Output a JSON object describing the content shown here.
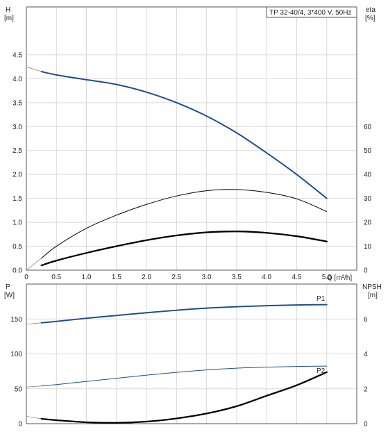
{
  "chart_data": [
    {
      "type": "line",
      "title": "TP 32-40/4, 3*400 V, 50Hz",
      "xlabel": "Q [m³/h]",
      "ylabel_left": [
        "H",
        "[m]"
      ],
      "ylabel_right": [
        "eta",
        "[%]"
      ],
      "xlim": [
        0,
        5.5
      ],
      "ylim_left": [
        0,
        5.5
      ],
      "ylim_right": [
        0,
        110
      ],
      "grid": true,
      "x_ticks": [
        "0",
        "0.5",
        "1.0",
        "1.5",
        "2.0",
        "2.5",
        "3.0",
        "3.5",
        "4.0",
        "4.5",
        "5.0"
      ],
      "y_ticks_left": [
        "0.0",
        "0.5",
        "1.0",
        "1.5",
        "2.0",
        "2.5",
        "3.0",
        "3.5",
        "4.0",
        "4.5"
      ],
      "y_ticks_right": [
        "0",
        "10",
        "20",
        "30",
        "40",
        "50",
        "60"
      ],
      "series": [
        {
          "role": "H-extension",
          "axis": "left",
          "color": "#7a7a7a",
          "width": 0.7,
          "x": [
            0,
            0.1,
            0.2,
            0.25
          ],
          "y": [
            4.25,
            4.21,
            4.17,
            4.15
          ]
        },
        {
          "role": "H",
          "axis": "left",
          "color": "#1f4e8c",
          "width": 2,
          "x": [
            0.25,
            0.5,
            1.0,
            1.5,
            2.0,
            2.5,
            3.0,
            3.5,
            4.0,
            4.5,
            5.0
          ],
          "y": [
            4.15,
            4.08,
            3.98,
            3.88,
            3.72,
            3.5,
            3.22,
            2.87,
            2.45,
            2.0,
            1.5
          ]
        },
        {
          "role": "eta-extension",
          "axis": "right",
          "color": "#7a7a7a",
          "width": 0.7,
          "x": [
            0,
            0.1,
            0.25
          ],
          "y": [
            0,
            2,
            5
          ]
        },
        {
          "role": "eta-pump",
          "axis": "right",
          "color": "#000000",
          "width": 1,
          "x": [
            0.25,
            0.5,
            1.0,
            1.5,
            2.0,
            2.5,
            3.0,
            3.5,
            4.0,
            4.5,
            5.0
          ],
          "y": [
            5,
            10,
            17.5,
            23,
            27.5,
            31,
            33.2,
            33.7,
            32.5,
            29.8,
            24.5
          ]
        },
        {
          "role": "eta-total",
          "axis": "right",
          "color": "#000000",
          "width": 2.3,
          "x": [
            0.25,
            0.5,
            1.0,
            1.5,
            2.0,
            2.5,
            3.0,
            3.5,
            4.0,
            4.5,
            5.0
          ],
          "y": [
            2,
            4,
            7.2,
            10,
            12.5,
            14.5,
            15.8,
            16.2,
            15.6,
            14.2,
            12
          ]
        }
      ]
    },
    {
      "type": "line",
      "xlabel": "",
      "ylabel_left": [
        "P",
        "[W]"
      ],
      "ylabel_right": [
        "NPSH",
        "[m]"
      ],
      "xlim": [
        0,
        5.5
      ],
      "ylim_left": [
        0,
        200
      ],
      "ylim_right": [
        0,
        8
      ],
      "grid": true,
      "y_ticks_left": [
        "0",
        "50",
        "100",
        "150"
      ],
      "y_ticks_right": [
        "0",
        "2",
        "4",
        "6"
      ],
      "labels": {
        "p1": "P1",
        "p2": "P2"
      },
      "series": [
        {
          "role": "P1-extension",
          "axis": "left",
          "color": "#7a7a7a",
          "width": 0.7,
          "x": [
            0,
            0.25
          ],
          "y": [
            142.5,
            144.5
          ]
        },
        {
          "role": "P1",
          "axis": "left",
          "color": "#1f4e8c",
          "width": 2,
          "x": [
            0.25,
            0.5,
            1.0,
            1.5,
            2.0,
            2.5,
            3.0,
            3.5,
            4.0,
            4.5,
            5.0
          ],
          "y": [
            144.5,
            146.5,
            151,
            155,
            159,
            162.5,
            165.5,
            167.5,
            169,
            170,
            170.5
          ]
        },
        {
          "role": "P2-extension",
          "axis": "left",
          "color": "#7a7a7a",
          "width": 0.7,
          "x": [
            0,
            0.25
          ],
          "y": [
            52.5,
            54
          ]
        },
        {
          "role": "P2",
          "axis": "left",
          "color": "#1f4e8c",
          "width": 1,
          "x": [
            0.25,
            0.5,
            1.0,
            1.5,
            2.0,
            2.5,
            3.0,
            3.5,
            4.0,
            4.5,
            5.0
          ],
          "y": [
            54,
            56,
            60.5,
            65,
            69.5,
            73.5,
            77,
            79.5,
            81,
            82,
            82.5
          ]
        },
        {
          "role": "NPSH-extension",
          "axis": "right",
          "color": "#7a7a7a",
          "width": 0.7,
          "x": [
            0,
            0.25
          ],
          "y": [
            0.42,
            0.28
          ]
        },
        {
          "role": "NPSH",
          "axis": "right",
          "color": "#000000",
          "width": 2.3,
          "x": [
            0.25,
            0.5,
            1.0,
            1.5,
            2.0,
            2.5,
            3.0,
            3.5,
            4.0,
            4.5,
            5.0
          ],
          "y": [
            0.28,
            0.2,
            0.08,
            0.05,
            0.12,
            0.3,
            0.58,
            1.0,
            1.6,
            2.2,
            2.95
          ]
        }
      ]
    }
  ]
}
